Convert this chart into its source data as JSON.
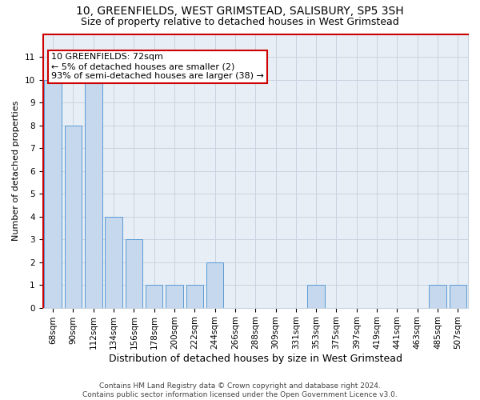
{
  "title": "10, GREENFIELDS, WEST GRIMSTEAD, SALISBURY, SP5 3SH",
  "subtitle": "Size of property relative to detached houses in West Grimstead",
  "xlabel": "Distribution of detached houses by size in West Grimstead",
  "ylabel": "Number of detached properties",
  "categories": [
    "68sqm",
    "90sqm",
    "112sqm",
    "134sqm",
    "156sqm",
    "178sqm",
    "200sqm",
    "222sqm",
    "244sqm",
    "266sqm",
    "288sqm",
    "309sqm",
    "331sqm",
    "353sqm",
    "375sqm",
    "397sqm",
    "419sqm",
    "441sqm",
    "463sqm",
    "485sqm",
    "507sqm"
  ],
  "values": [
    10,
    8,
    10,
    4,
    3,
    1,
    1,
    1,
    2,
    0,
    0,
    0,
    0,
    1,
    0,
    0,
    0,
    0,
    0,
    1,
    1
  ],
  "bar_color": "#c5d8ed",
  "bar_edgecolor": "#5b9bd5",
  "annotation_text": "10 GREENFIELDS: 72sqm\n← 5% of detached houses are smaller (2)\n93% of semi-detached houses are larger (38) →",
  "annotation_box_edgecolor": "#cc0000",
  "annotation_box_facecolor": "#ffffff",
  "ylim": [
    0,
    12
  ],
  "yticks": [
    0,
    1,
    2,
    3,
    4,
    5,
    6,
    7,
    8,
    9,
    10,
    11
  ],
  "footer_line1": "Contains HM Land Registry data © Crown copyright and database right 2024.",
  "footer_line2": "Contains public sector information licensed under the Open Government Licence v3.0.",
  "grid_color": "#c8d4e0",
  "bg_color": "#e8eef5",
  "red_color": "#cc0000",
  "title_fontsize": 10,
  "subtitle_fontsize": 9,
  "axis_label_fontsize": 8,
  "tick_fontsize": 7.5,
  "footer_fontsize": 6.5
}
